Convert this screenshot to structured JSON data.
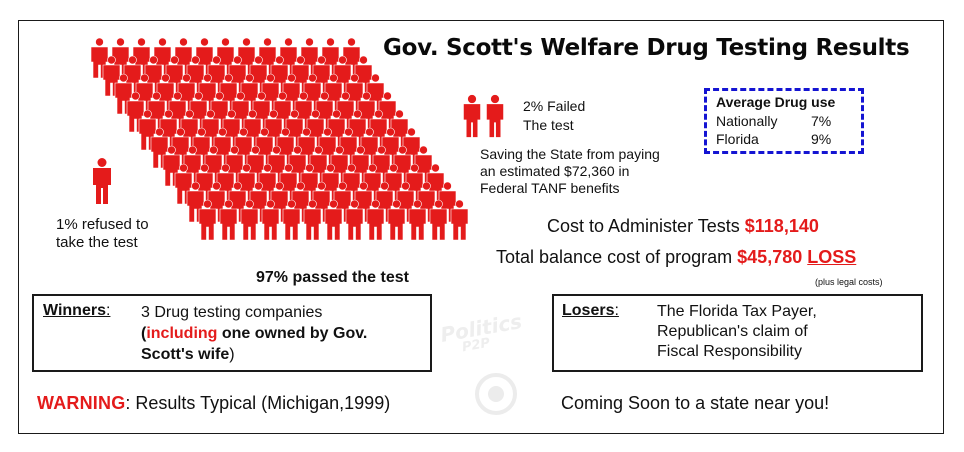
{
  "title": "Gov. Scott's Welfare Drug Testing Results",
  "colors": {
    "figure": "#e41b1b",
    "accent_red": "#e41b1b",
    "box_dashed": "#1414d2",
    "border": "#1a1a1a"
  },
  "icons": {
    "people": "person-icon"
  },
  "crowd": {
    "passed_pct": 97,
    "passed_label": "97% passed the test"
  },
  "refused": {
    "pct": 1,
    "line1": "1% refused to",
    "line2": "take the test"
  },
  "failed": {
    "pct": 2,
    "line1": "2% Failed",
    "line2": "The test",
    "savings_line1": "Saving the State from paying",
    "savings_line2": "an estimated $72,360 in",
    "savings_line3": "Federal TANF benefits"
  },
  "average_drug_use": {
    "title": "Average Drug use",
    "rows": [
      {
        "label": "Nationally",
        "value": "7%"
      },
      {
        "label": "Florida",
        "value": "9%"
      }
    ]
  },
  "costs": {
    "administer_label": "Cost to Administer Tests",
    "administer_value": "$118,140",
    "balance_label": "Total balance cost of program",
    "balance_value": "$45,780",
    "balance_suffix": "LOSS",
    "note": "(plus legal costs)"
  },
  "winners": {
    "heading": "Winners",
    "line1": "3 Drug testing companies",
    "open_paren": "(",
    "highlight": "including",
    "line2_rest": " one owned by Gov.",
    "line3": "Scott's wife",
    "close_paren": ")"
  },
  "losers": {
    "heading": "Losers",
    "line1": "The Florida Tax Payer,",
    "line2": "Republican's claim of",
    "line3": "Fiscal Responsibility"
  },
  "warning": {
    "label": "WARNING",
    "text": ": Results Typical (Michigan,1999)"
  },
  "coming_soon": "Coming Soon to a state near you!",
  "watermark": {
    "line1": "Politics",
    "line2": "P2P"
  }
}
